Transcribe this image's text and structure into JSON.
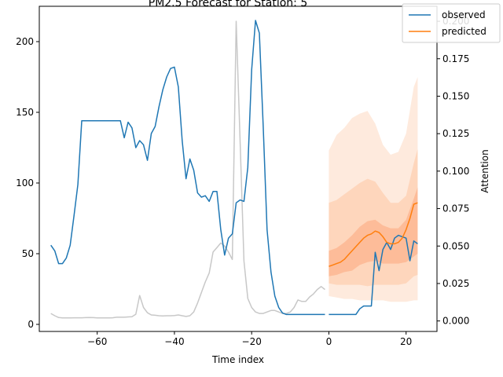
{
  "chart_data": {
    "type": "line",
    "title": "PM2.5 Forecast for Station: 5",
    "xlabel": "Time index",
    "ylabel": "",
    "y2label": "Attention",
    "xlim": [
      -75,
      28
    ],
    "ylim": [
      -5,
      225
    ],
    "y2lim": [
      -0.007,
      0.21
    ],
    "x_ticks": [
      -60,
      -40,
      -20,
      0,
      20
    ],
    "y_ticks": [
      0,
      50,
      100,
      150,
      200
    ],
    "y2_ticks": [
      0.0,
      0.025,
      0.05,
      0.075,
      0.1,
      0.125,
      0.15,
      0.175,
      0.2
    ],
    "legend_position": "top-right",
    "series": [
      {
        "name": "observed",
        "color": "#1f77b4",
        "x": [
          -72,
          -71,
          -70,
          -69,
          -68,
          -67,
          -66,
          -65,
          -64,
          -63,
          -62,
          -61,
          -60,
          -59,
          -58,
          -57,
          -56,
          -55,
          -54,
          -53,
          -52,
          -51,
          -50,
          -49,
          -48,
          -47,
          -46,
          -45,
          -44,
          -43,
          -42,
          -41,
          -40,
          -39,
          -38,
          -37,
          -36,
          -35,
          -34,
          -33,
          -32,
          -31,
          -30,
          -29,
          -28,
          -27,
          -26,
          -25,
          -24,
          -23,
          -22,
          -21,
          -20,
          -19,
          -18,
          -17,
          -16,
          -15,
          -14,
          -13,
          -12,
          -11,
          -10,
          -9,
          -8,
          -7,
          -6,
          -5,
          -4,
          -3,
          -2,
          -1,
          null,
          0,
          1,
          2,
          3,
          4,
          5,
          6,
          7,
          8,
          9,
          10,
          11,
          12,
          13,
          14,
          15,
          16,
          17,
          18,
          19,
          20,
          21,
          22,
          23
        ],
        "values": [
          56,
          52,
          43,
          43,
          47,
          56,
          77,
          99,
          144,
          144,
          144,
          144,
          144,
          144,
          144,
          144,
          144,
          144,
          144,
          132,
          143,
          139,
          125,
          130,
          127,
          116,
          135,
          140,
          154,
          166,
          175,
          181,
          182,
          168,
          130,
          103,
          117,
          109,
          93,
          90,
          91,
          87,
          94,
          94,
          67,
          49,
          61,
          64,
          86,
          88,
          87,
          111,
          180,
          215,
          206,
          140,
          67,
          37,
          20,
          12,
          8,
          7,
          7,
          7,
          7,
          7,
          7,
          7,
          7,
          7,
          7,
          7,
          null,
          7,
          7,
          7,
          7,
          7,
          7,
          7,
          7,
          11,
          13,
          13,
          13,
          51,
          38,
          53,
          58,
          53,
          61,
          63,
          62,
          61,
          45,
          59,
          57
        ]
      },
      {
        "name": "predicted",
        "color": "#ff7f0e",
        "x": [
          0,
          1,
          2,
          3,
          4,
          5,
          6,
          7,
          8,
          9,
          10,
          11,
          12,
          13,
          14,
          15,
          16,
          17,
          18,
          19,
          20,
          21,
          22,
          23
        ],
        "values": [
          41,
          42,
          43,
          44,
          46,
          49,
          52,
          55,
          58,
          61,
          63,
          64,
          66,
          65,
          62,
          58,
          57,
          57,
          58,
          61,
          67,
          75,
          85,
          86
        ]
      },
      {
        "name": "",
        "color": "#c8c8c8",
        "axis": "right",
        "x": [
          -72,
          -71,
          -70,
          -69,
          -68,
          -67,
          -66,
          -65,
          -64,
          -63,
          -62,
          -61,
          -60,
          -59,
          -58,
          -57,
          -56,
          -55,
          -54,
          -53,
          -52,
          -51,
          -50,
          -49,
          -48,
          -47,
          -46,
          -45,
          -44,
          -43,
          -42,
          -41,
          -40,
          -39,
          -38,
          -37,
          -36,
          -35,
          -34,
          -33,
          -32,
          -31,
          -30,
          -29,
          -28,
          -27,
          -26,
          -25,
          -24,
          -23,
          -22,
          -21,
          -20,
          -19,
          -18,
          -17,
          -16,
          -15,
          -14,
          -13,
          -12,
          -11,
          -10,
          -9,
          -8,
          -7,
          -6,
          -5,
          -4,
          -3,
          -2,
          -1
        ],
        "values": [
          0.005,
          0.0035,
          0.0023,
          0.002,
          0.002,
          0.002,
          0.0021,
          0.0021,
          0.0021,
          0.0022,
          0.0023,
          0.0022,
          0.002,
          0.002,
          0.002,
          0.002,
          0.0021,
          0.0025,
          0.0025,
          0.0025,
          0.0027,
          0.0028,
          0.0045,
          0.017,
          0.009,
          0.0055,
          0.004,
          0.0038,
          0.0035,
          0.0033,
          0.0035,
          0.0035,
          0.0036,
          0.004,
          0.0035,
          0.003,
          0.0035,
          0.006,
          0.012,
          0.019,
          0.026,
          0.032,
          0.046,
          0.049,
          0.052,
          0.05,
          0.046,
          0.041,
          0.2,
          0.12,
          0.04,
          0.015,
          0.009,
          0.006,
          0.005,
          0.005,
          0.006,
          0.007,
          0.007,
          0.006,
          0.005,
          0.005,
          0.006,
          0.009,
          0.014,
          0.013,
          0.013,
          0.016,
          0.018,
          0.021,
          0.023,
          0.021
        ]
      }
    ],
    "bands": [
      {
        "color": "#fdd9c1",
        "opacity": 0.55,
        "x": [
          0,
          2,
          4,
          6,
          8,
          10,
          12,
          14,
          16,
          18,
          20,
          22,
          23
        ],
        "lower": [
          20,
          19,
          18,
          18,
          17,
          17,
          17,
          17,
          16,
          16,
          16,
          17,
          17
        ],
        "upper": [
          123,
          134,
          139,
          146,
          149,
          151,
          142,
          127,
          120,
          122,
          135,
          168,
          175
        ]
      },
      {
        "color": "#fdc4a0",
        "opacity": 0.55,
        "x": [
          0,
          2,
          4,
          6,
          8,
          10,
          12,
          14,
          16,
          18,
          20,
          22,
          23
        ],
        "lower": [
          29,
          28,
          28,
          28,
          28,
          27,
          28,
          28,
          28,
          28,
          29,
          34,
          35
        ],
        "upper": [
          86,
          88,
          92,
          96,
          100,
          103,
          101,
          93,
          86,
          86,
          91,
          114,
          124
        ]
      },
      {
        "color": "#fca77b",
        "opacity": 0.55,
        "x": [
          0,
          2,
          4,
          6,
          8,
          10,
          12,
          14,
          16,
          18,
          20,
          22,
          23
        ],
        "lower": [
          34,
          35,
          37,
          38,
          42,
          44,
          45,
          43,
          43,
          43,
          44,
          48,
          50
        ],
        "upper": [
          52,
          54,
          58,
          63,
          69,
          73,
          74,
          70,
          68,
          68,
          74,
          89,
          97
        ]
      }
    ]
  }
}
